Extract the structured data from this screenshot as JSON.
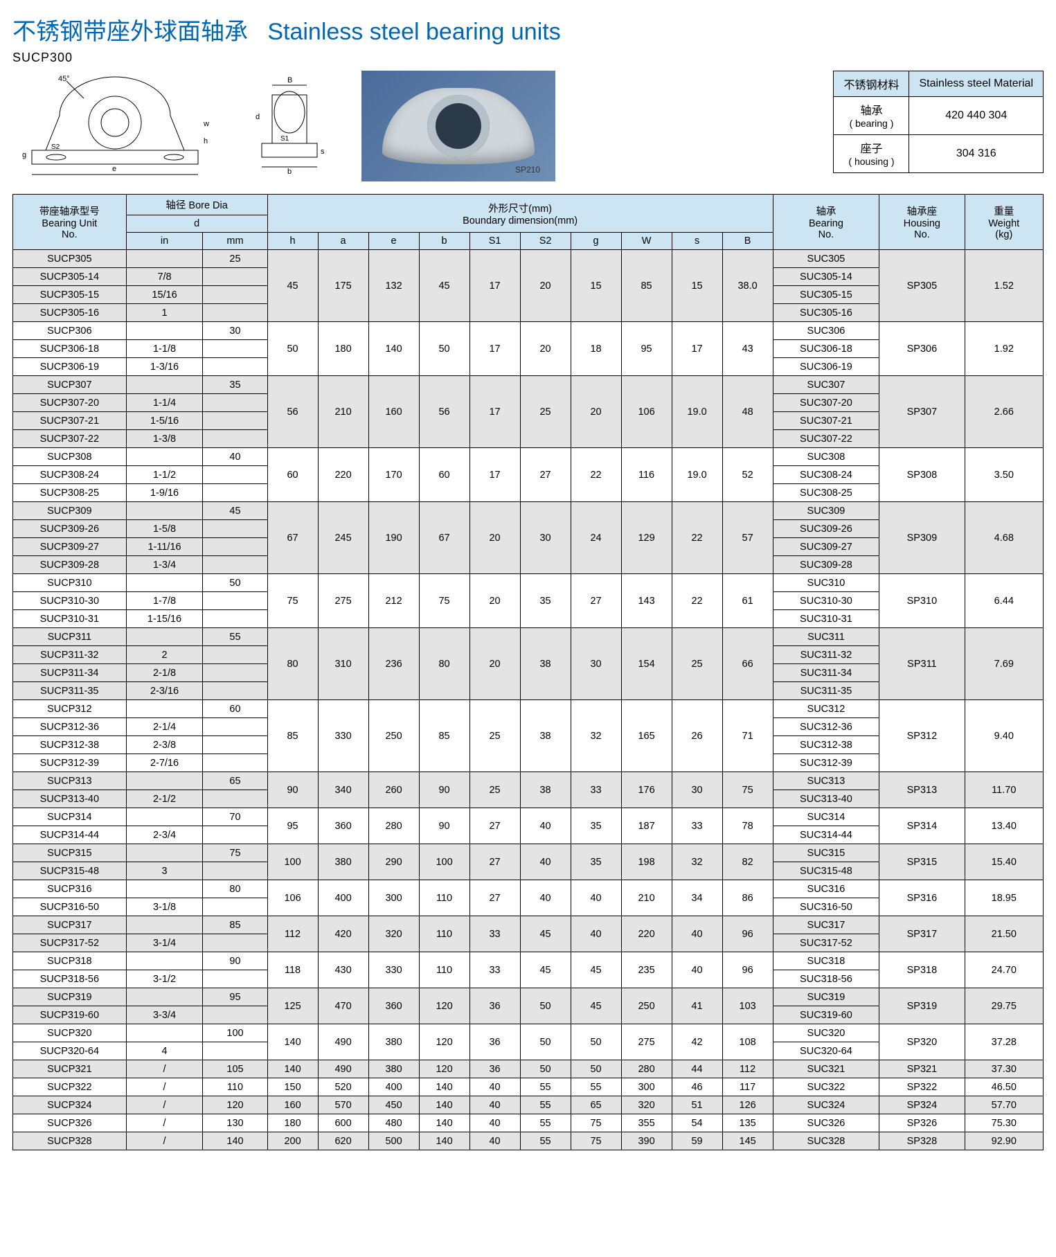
{
  "title_cn": "不锈钢带座外球面轴承",
  "title_en": "Stainless steel bearing units",
  "series": "SUCP300",
  "photo_marking": "SP210",
  "colors": {
    "accent": "#0067b3",
    "header_bg": "#cde5f3",
    "shade_bg": "#e4e4e4",
    "border": "#000000",
    "photo_bg_from": "#4a6a9a",
    "photo_bg_to": "#6f8fb4"
  },
  "material": {
    "header_cn": "不锈钢材料",
    "header_en": "Stainless steel Material",
    "rows": [
      {
        "label_cn": "轴承",
        "label_en": "( bearing )",
        "value": "420 440 304"
      },
      {
        "label_cn": "座子",
        "label_en": "( housing )",
        "value": "304 316"
      }
    ]
  },
  "headers": {
    "unit_cn": "带座轴承型号",
    "unit_en": "Bearing Unit",
    "unit_sub": "No.",
    "bore_cn": "轴径 Bore Dia",
    "bore_d": "d",
    "bore_in": "in",
    "bore_mm": "mm",
    "dim_cn": "外形尺寸(mm)",
    "dim_en": "Boundary dimension(mm)",
    "dim_cols": [
      "h",
      "a",
      "e",
      "b",
      "S1",
      "S2",
      "g",
      "W",
      "s",
      "B"
    ],
    "bearing_cn": "轴承",
    "bearing_en": "Bearing",
    "bearing_sub": "No.",
    "housing_cn": "轴承座",
    "housing_en": "Housing",
    "housing_sub": "No.",
    "weight_cn": "重量",
    "weight_en": "Weight",
    "weight_sub": "(kg)"
  },
  "groups": [
    {
      "shaded": true,
      "rows": [
        [
          "SUCP305",
          "",
          "25",
          "SUC305"
        ],
        [
          "SUCP305-14",
          "7/8",
          "",
          "SUC305-14"
        ],
        [
          "SUCP305-15",
          "15/16",
          "",
          "SUC305-15"
        ],
        [
          "SUCP305-16",
          "1",
          "",
          "SUC305-16"
        ]
      ],
      "dims": [
        "45",
        "175",
        "132",
        "45",
        "17",
        "20",
        "15",
        "85",
        "15",
        "38.0"
      ],
      "housing": "SP305",
      "weight": "1.52"
    },
    {
      "shaded": false,
      "rows": [
        [
          "SUCP306",
          "",
          "30",
          "SUC306"
        ],
        [
          "SUCP306-18",
          "1-1/8",
          "",
          "SUC306-18"
        ],
        [
          "SUCP306-19",
          "1-3/16",
          "",
          "SUC306-19"
        ]
      ],
      "dims": [
        "50",
        "180",
        "140",
        "50",
        "17",
        "20",
        "18",
        "95",
        "17",
        "43"
      ],
      "housing": "SP306",
      "weight": "1.92"
    },
    {
      "shaded": true,
      "rows": [
        [
          "SUCP307",
          "",
          "35",
          "SUC307"
        ],
        [
          "SUCP307-20",
          "1-1/4",
          "",
          "SUC307-20"
        ],
        [
          "SUCP307-21",
          "1-5/16",
          "",
          "SUC307-21"
        ],
        [
          "SUCP307-22",
          "1-3/8",
          "",
          "SUC307-22"
        ]
      ],
      "dims": [
        "56",
        "210",
        "160",
        "56",
        "17",
        "25",
        "20",
        "106",
        "19.0",
        "48"
      ],
      "housing": "SP307",
      "weight": "2.66"
    },
    {
      "shaded": false,
      "rows": [
        [
          "SUCP308",
          "",
          "40",
          "SUC308"
        ],
        [
          "SUCP308-24",
          "1-1/2",
          "",
          "SUC308-24"
        ],
        [
          "SUCP308-25",
          "1-9/16",
          "",
          "SUC308-25"
        ]
      ],
      "dims": [
        "60",
        "220",
        "170",
        "60",
        "17",
        "27",
        "22",
        "116",
        "19.0",
        "52"
      ],
      "housing": "SP308",
      "weight": "3.50"
    },
    {
      "shaded": true,
      "rows": [
        [
          "SUCP309",
          "",
          "45",
          "SUC309"
        ],
        [
          "SUCP309-26",
          "1-5/8",
          "",
          "SUC309-26"
        ],
        [
          "SUCP309-27",
          "1-11/16",
          "",
          "SUC309-27"
        ],
        [
          "SUCP309-28",
          "1-3/4",
          "",
          "SUC309-28"
        ]
      ],
      "dims": [
        "67",
        "245",
        "190",
        "67",
        "20",
        "30",
        "24",
        "129",
        "22",
        "57"
      ],
      "housing": "SP309",
      "weight": "4.68"
    },
    {
      "shaded": false,
      "rows": [
        [
          "SUCP310",
          "",
          "50",
          "SUC310"
        ],
        [
          "SUCP310-30",
          "1-7/8",
          "",
          "SUC310-30"
        ],
        [
          "SUCP310-31",
          "1-15/16",
          "",
          "SUC310-31"
        ]
      ],
      "dims": [
        "75",
        "275",
        "212",
        "75",
        "20",
        "35",
        "27",
        "143",
        "22",
        "61"
      ],
      "housing": "SP310",
      "weight": "6.44"
    },
    {
      "shaded": true,
      "rows": [
        [
          "SUCP311",
          "",
          "55",
          "SUC311"
        ],
        [
          "SUCP311-32",
          "2",
          "",
          "SUC311-32"
        ],
        [
          "SUCP311-34",
          "2-1/8",
          "",
          "SUC311-34"
        ],
        [
          "SUCP311-35",
          "2-3/16",
          "",
          "SUC311-35"
        ]
      ],
      "dims": [
        "80",
        "310",
        "236",
        "80",
        "20",
        "38",
        "30",
        "154",
        "25",
        "66"
      ],
      "housing": "SP311",
      "weight": "7.69"
    },
    {
      "shaded": false,
      "rows": [
        [
          "SUCP312",
          "",
          "60",
          "SUC312"
        ],
        [
          "SUCP312-36",
          "2-1/4",
          "",
          "SUC312-36"
        ],
        [
          "SUCP312-38",
          "2-3/8",
          "",
          "SUC312-38"
        ],
        [
          "SUCP312-39",
          "2-7/16",
          "",
          "SUC312-39"
        ]
      ],
      "dims": [
        "85",
        "330",
        "250",
        "85",
        "25",
        "38",
        "32",
        "165",
        "26",
        "71"
      ],
      "housing": "SP312",
      "weight": "9.40"
    },
    {
      "shaded": true,
      "rows": [
        [
          "SUCP313",
          "",
          "65",
          "SUC313"
        ],
        [
          "SUCP313-40",
          "2-1/2",
          "",
          "SUC313-40"
        ]
      ],
      "dims": [
        "90",
        "340",
        "260",
        "90",
        "25",
        "38",
        "33",
        "176",
        "30",
        "75"
      ],
      "housing": "SP313",
      "weight": "11.70"
    },
    {
      "shaded": false,
      "rows": [
        [
          "SUCP314",
          "",
          "70",
          "SUC314"
        ],
        [
          "SUCP314-44",
          "2-3/4",
          "",
          "SUC314-44"
        ]
      ],
      "dims": [
        "95",
        "360",
        "280",
        "90",
        "27",
        "40",
        "35",
        "187",
        "33",
        "78"
      ],
      "housing": "SP314",
      "weight": "13.40"
    },
    {
      "shaded": true,
      "rows": [
        [
          "SUCP315",
          "",
          "75",
          "SUC315"
        ],
        [
          "SUCP315-48",
          "3",
          "",
          "SUC315-48"
        ]
      ],
      "dims": [
        "100",
        "380",
        "290",
        "100",
        "27",
        "40",
        "35",
        "198",
        "32",
        "82"
      ],
      "housing": "SP315",
      "weight": "15.40"
    },
    {
      "shaded": false,
      "rows": [
        [
          "SUCP316",
          "",
          "80",
          "SUC316"
        ],
        [
          "SUCP316-50",
          "3-1/8",
          "",
          "SUC316-50"
        ]
      ],
      "dims": [
        "106",
        "400",
        "300",
        "110",
        "27",
        "40",
        "40",
        "210",
        "34",
        "86"
      ],
      "housing": "SP316",
      "weight": "18.95"
    },
    {
      "shaded": true,
      "rows": [
        [
          "SUCP317",
          "",
          "85",
          "SUC317"
        ],
        [
          "SUCP317-52",
          "3-1/4",
          "",
          "SUC317-52"
        ]
      ],
      "dims": [
        "112",
        "420",
        "320",
        "110",
        "33",
        "45",
        "40",
        "220",
        "40",
        "96"
      ],
      "housing": "SP317",
      "weight": "21.50"
    },
    {
      "shaded": false,
      "rows": [
        [
          "SUCP318",
          "",
          "90",
          "SUC318"
        ],
        [
          "SUCP318-56",
          "3-1/2",
          "",
          "SUC318-56"
        ]
      ],
      "dims": [
        "118",
        "430",
        "330",
        "110",
        "33",
        "45",
        "45",
        "235",
        "40",
        "96"
      ],
      "housing": "SP318",
      "weight": "24.70"
    },
    {
      "shaded": true,
      "rows": [
        [
          "SUCP319",
          "",
          "95",
          "SUC319"
        ],
        [
          "SUCP319-60",
          "3-3/4",
          "",
          "SUC319-60"
        ]
      ],
      "dims": [
        "125",
        "470",
        "360",
        "120",
        "36",
        "50",
        "45",
        "250",
        "41",
        "103"
      ],
      "housing": "SP319",
      "weight": "29.75"
    },
    {
      "shaded": false,
      "rows": [
        [
          "SUCP320",
          "",
          "100",
          "SUC320"
        ],
        [
          "SUCP320-64",
          "4",
          "",
          "SUC320-64"
        ]
      ],
      "dims": [
        "140",
        "490",
        "380",
        "120",
        "36",
        "50",
        "50",
        "275",
        "42",
        "108"
      ],
      "housing": "SP320",
      "weight": "37.28"
    },
    {
      "shaded": true,
      "rows": [
        [
          "SUCP321",
          "/",
          "105",
          "SUC321"
        ]
      ],
      "dims": [
        "140",
        "490",
        "380",
        "120",
        "36",
        "50",
        "50",
        "280",
        "44",
        "112"
      ],
      "housing": "SP321",
      "weight": "37.30"
    },
    {
      "shaded": false,
      "rows": [
        [
          "SUCP322",
          "/",
          "110",
          "SUC322"
        ]
      ],
      "dims": [
        "150",
        "520",
        "400",
        "140",
        "40",
        "55",
        "55",
        "300",
        "46",
        "117"
      ],
      "housing": "SP322",
      "weight": "46.50"
    },
    {
      "shaded": true,
      "rows": [
        [
          "SUCP324",
          "/",
          "120",
          "SUC324"
        ]
      ],
      "dims": [
        "160",
        "570",
        "450",
        "140",
        "40",
        "55",
        "65",
        "320",
        "51",
        "126"
      ],
      "housing": "SP324",
      "weight": "57.70"
    },
    {
      "shaded": false,
      "rows": [
        [
          "SUCP326",
          "/",
          "130",
          "SUC326"
        ]
      ],
      "dims": [
        "180",
        "600",
        "480",
        "140",
        "40",
        "55",
        "75",
        "355",
        "54",
        "135"
      ],
      "housing": "SP326",
      "weight": "75.30"
    },
    {
      "shaded": true,
      "rows": [
        [
          "SUCP328",
          "/",
          "140",
          "SUC328"
        ]
      ],
      "dims": [
        "200",
        "620",
        "500",
        "140",
        "40",
        "55",
        "75",
        "390",
        "59",
        "145"
      ],
      "housing": "SP328",
      "weight": "92.90"
    }
  ]
}
